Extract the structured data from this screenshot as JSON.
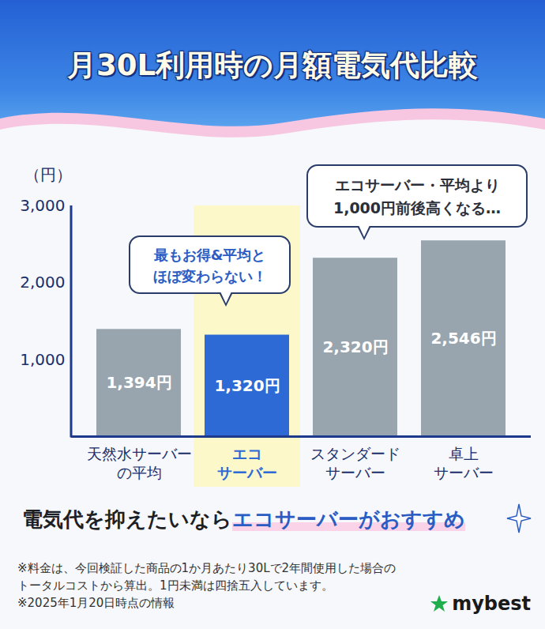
{
  "chart_data": {
    "type": "bar",
    "title": "月30L利用時の月額電気代比較",
    "y_label": "（円）",
    "categories": [
      "天然水サーバー\nの平均",
      "エコ\nサーバー",
      "スタンダード\nサーバー",
      "卓上\nサーバー"
    ],
    "values": [
      1394,
      1320,
      2320,
      2546
    ],
    "value_labels": [
      "1,394円",
      "1,320円",
      "2,320円",
      "2,546円"
    ],
    "colors": [
      "#98a5ae",
      "#2e6ad6",
      "#98a5ae",
      "#98a5ae"
    ],
    "data_labels": true,
    "ylim": [
      0,
      3000
    ],
    "yticks": [
      {
        "value": 1000,
        "label": "1,000"
      },
      {
        "value": 2000,
        "label": "2,000"
      },
      {
        "value": 3000,
        "label": "3,000"
      }
    ],
    "annotations": [
      "最もお得&平均と\nほぼ変わらない！",
      "エコサーバー・平均より\n1,000円前後高くなる…"
    ],
    "caption": [
      "電気代を抑えたいなら",
      "エコサーバーがおすすめ"
    ],
    "notes": [
      "※料金は、今回検証した商品の1か月あたり30Lで2年間使用した場合の",
      "トータルコストから算出。1円未満は四捨五入しています。",
      "※2025年1月20日時点の情報"
    ],
    "source": "mybest"
  }
}
